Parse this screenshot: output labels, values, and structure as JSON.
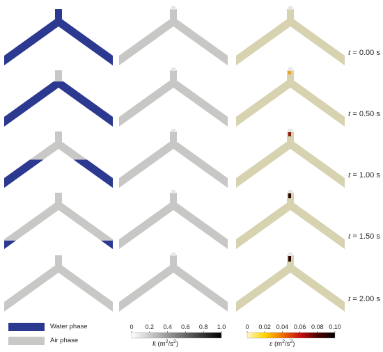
{
  "time_labels": [
    {
      "var": "t",
      "value": " = 0.00 s"
    },
    {
      "var": "t",
      "value": " = 0.50 s"
    },
    {
      "var": "t",
      "value": " = 1.00 s"
    },
    {
      "var": "t",
      "value": " = 1.50 s"
    },
    {
      "var": "t",
      "value": " = 2.00 s"
    }
  ],
  "water_fill_fraction": [
    1.0,
    0.8,
    0.5,
    0.15,
    0.0
  ],
  "legend": {
    "water_label": "Water phase",
    "air_label": "Air phase",
    "water_color": "#2b3990",
    "air_color": "#c8c8c6"
  },
  "colorbar_k": {
    "ticks": [
      "0",
      "0.2",
      "0.4",
      "0.6",
      "0.8",
      "1.0"
    ],
    "symbol": "k",
    "unit": " (m",
    "unit_exp": "2",
    "unit_mid": "/s",
    "unit_exp2": "2",
    "unit_end": ")",
    "color_start": "#ffffff",
    "color_end": "#000000"
  },
  "colorbar_eps": {
    "ticks": [
      "0",
      "0.02",
      "0.04",
      "0.06",
      "0.08",
      "0.10"
    ],
    "symbol": "ε",
    "unit": " (m",
    "unit_exp": "2",
    "unit_mid": "/s",
    "unit_exp2": "2",
    "unit_end": ")",
    "colors": [
      "#fff8c0",
      "#ffd400",
      "#f07000",
      "#c81010",
      "#500000",
      "#000000"
    ]
  },
  "colors": {
    "k_field": "#c7c7c5",
    "eps_field": "#d7d3b1",
    "pipe_tip": "#e6e6e6"
  }
}
